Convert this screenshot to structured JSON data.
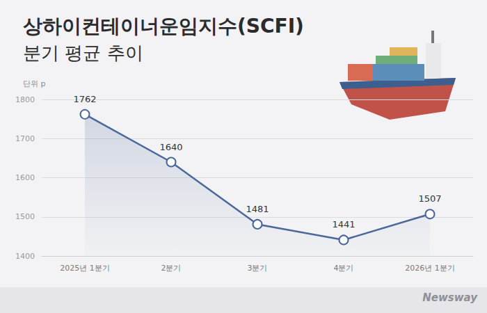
{
  "chart_data": {
    "type": "line",
    "title": "상하이컨테이너운임지수(SCFI)",
    "subtitle": "분기 평균 추이",
    "ylabel": "단위 p",
    "source": "Newsway",
    "categories": [
      "2025년 1분기",
      "2분기",
      "3분기",
      "4분기",
      "2026년 1분기"
    ],
    "values": [
      1762,
      1640,
      1481,
      1441,
      1507
    ],
    "color": "#4a6899",
    "marker": "circle",
    "ylim": [
      1400,
      1800
    ],
    "yticks": [
      1400,
      1500,
      1600,
      1700,
      1800
    ],
    "grid": true,
    "data_labels": true
  }
}
